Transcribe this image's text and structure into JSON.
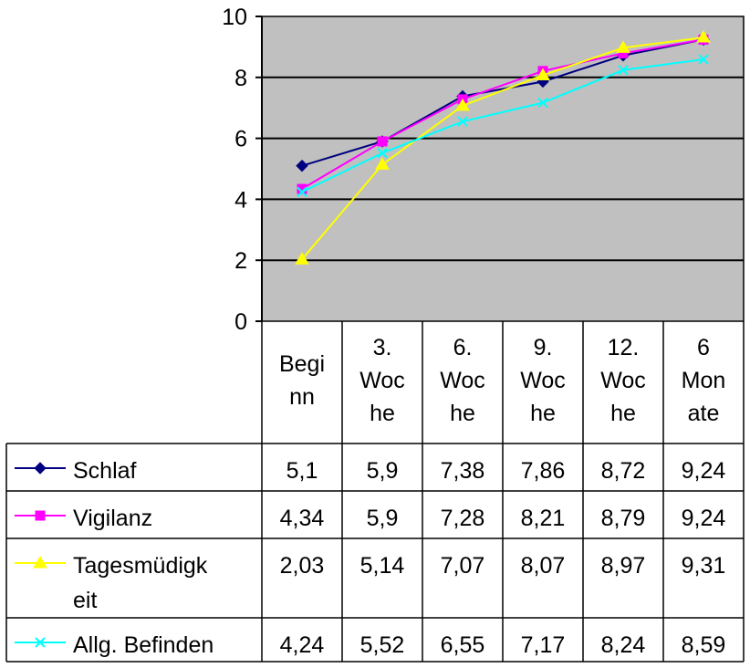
{
  "chart_data": {
    "type": "line",
    "title": "",
    "xlabel": "",
    "ylabel": "",
    "ylim": [
      0,
      10
    ],
    "yticks": [
      "0",
      "2",
      "4",
      "6",
      "8",
      "10"
    ],
    "grid": "horizontal",
    "plot_background": "#c0c0c0",
    "legend": "table-below",
    "categories": [
      [
        "Begi",
        "nn"
      ],
      [
        "3.",
        "Woc",
        "he"
      ],
      [
        "6.",
        "Woc",
        "he"
      ],
      [
        "9.",
        "Woc",
        "he"
      ],
      [
        "12.",
        "Woc",
        "he"
      ],
      [
        "6",
        "Mon",
        "ate"
      ]
    ],
    "series": [
      {
        "name": [
          "Schlaf"
        ],
        "color": "#000080",
        "marker": "diamond",
        "values": [
          5.1,
          5.9,
          7.38,
          7.86,
          8.72,
          9.24
        ],
        "labels": [
          "5,1",
          "5,9",
          "7,38",
          "7,86",
          "8,72",
          "9,24"
        ]
      },
      {
        "name": [
          "Vigilanz"
        ],
        "color": "#ff00ff",
        "marker": "square",
        "values": [
          4.34,
          5.9,
          7.28,
          8.21,
          8.79,
          9.24
        ],
        "labels": [
          "4,34",
          "5,9",
          "7,28",
          "8,21",
          "8,79",
          "9,24"
        ]
      },
      {
        "name": [
          "Tagesmüdigk",
          "eit"
        ],
        "color": "#ffff00",
        "marker": "triangle",
        "values": [
          2.03,
          5.14,
          7.07,
          8.07,
          8.97,
          9.31
        ],
        "labels": [
          "2,03",
          "5,14",
          "7,07",
          "8,07",
          "8,97",
          "9,31"
        ]
      },
      {
        "name": [
          "Allg. Befinden"
        ],
        "color": "#00ffff",
        "marker": "x",
        "values": [
          4.24,
          5.52,
          6.55,
          7.17,
          8.24,
          8.59
        ],
        "labels": [
          "4,24",
          "5,52",
          "6,55",
          "7,17",
          "8,24",
          "8,59"
        ]
      }
    ]
  }
}
